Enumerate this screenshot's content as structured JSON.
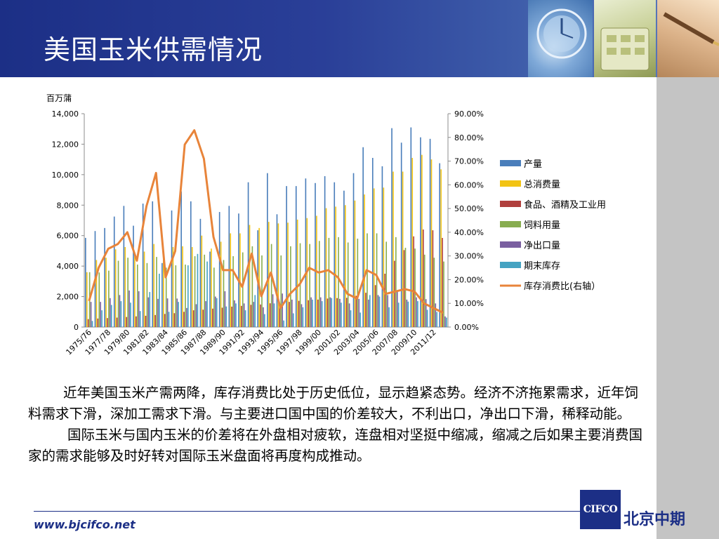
{
  "slide": {
    "title": "美国玉米供需情况",
    "paragraphs": [
      "近年美国玉米产需两降，库存消费比处于历史低位，显示趋紧态势。经济不济拖累需求，近年饲料需求下滑，深加工需求下滑。与主要进口国中国的价差较大，不利出口，净出口下滑，稀释动能。",
      "国际玉米与国内玉米的价差将在外盘相对疲软，连盘相对坚挺中缩减，缩减之后如果主要消费国家的需求能够及时好转对国际玉米盘面将再度构成推动。"
    ],
    "website": "www.bjcifco.net",
    "logo_text": "CIFCO",
    "company": "北京中期"
  },
  "chart_data": {
    "type": "bar",
    "unit_label": "百万蒲",
    "y_left_ticks": [
      "14,000",
      "12,000",
      "10,000",
      "8,000",
      "6,000",
      "4,000",
      "2,000",
      "0"
    ],
    "y_right_ticks": [
      "90.00%",
      "80.00%",
      "70.00%",
      "60.00%",
      "50.00%",
      "40.00%",
      "30.00%",
      "20.00%",
      "10.00%",
      "0.00%"
    ],
    "ylim_left": [
      0,
      14000
    ],
    "ylim_right": [
      0,
      90
    ],
    "x_tick_labels": [
      "1975/76",
      "1977/78",
      "1979/80",
      "1981/82",
      "1983/84",
      "1985/86",
      "1987/88",
      "1989/90",
      "1991/92",
      "1993/94",
      "1995/96",
      "1997/98",
      "1999/00",
      "2001/02",
      "2003/04",
      "2005/06",
      "2007/08",
      "2009/10",
      "2011/12"
    ],
    "categories": [
      "1975/76",
      "1976/77",
      "1977/78",
      "1978/79",
      "1979/80",
      "1980/81",
      "1981/82",
      "1982/83",
      "1983/84",
      "1984/85",
      "1985/86",
      "1986/87",
      "1987/88",
      "1988/89",
      "1989/90",
      "1990/91",
      "1991/92",
      "1992/93",
      "1993/94",
      "1994/95",
      "1995/96",
      "1996/97",
      "1997/98",
      "1998/99",
      "1999/00",
      "2000/01",
      "2001/02",
      "2002/03",
      "2003/04",
      "2004/05",
      "2005/06",
      "2006/07",
      "2007/08",
      "2008/09",
      "2009/10",
      "2010/11",
      "2011/12",
      "2012/13"
    ],
    "series": [
      {
        "name": "产量",
        "color": "#4a7ebb",
        "values": [
          5850,
          6300,
          6500,
          7250,
          7950,
          6650,
          8100,
          8250,
          4200,
          7650,
          8900,
          8250,
          7100,
          4950,
          7550,
          7950,
          7450,
          9500,
          6350,
          10100,
          7400,
          9250,
          9250,
          9750,
          9450,
          9900,
          9500,
          8950,
          10100,
          11800,
          11100,
          10550,
          13050,
          12100,
          13100,
          12450,
          12350,
          10750
        ]
      },
      {
        "name": "总消费量",
        "color": "#f2c313",
        "values": [
          3600,
          4400,
          4550,
          5100,
          5250,
          4850,
          4950,
          5450,
          4550,
          5250,
          5300,
          5250,
          6000,
          5150,
          5600,
          6150,
          6150,
          6700,
          6500,
          6900,
          6800,
          6850,
          7050,
          7150,
          7300,
          7800,
          7900,
          8000,
          8300,
          8700,
          9100,
          9150,
          10200,
          10200,
          11100,
          11300,
          11000,
          10350
        ]
      },
      {
        "name": "食品、酒精及工业用",
        "color": "#b0403d",
        "values": [
          520,
          560,
          590,
          620,
          660,
          700,
          740,
          790,
          860,
          910,
          1000,
          1100,
          1140,
          1210,
          1270,
          1340,
          1390,
          1460,
          1480,
          1560,
          1510,
          1650,
          1720,
          1760,
          1800,
          1870,
          1900,
          1920,
          2050,
          2250,
          2750,
          3500,
          4350,
          5050,
          5950,
          6400,
          6350,
          5850
        ]
      },
      {
        "name": "饲料用量",
        "color": "#88ad50",
        "values": [
          3600,
          3580,
          3700,
          4350,
          4550,
          4100,
          4200,
          4600,
          3900,
          4050,
          4100,
          4650,
          4750,
          3900,
          4400,
          4650,
          4900,
          5300,
          4700,
          5450,
          4700,
          5300,
          5500,
          5450,
          5650,
          5850,
          5900,
          5550,
          5800,
          6150,
          6150,
          5600,
          5900,
          5200,
          5150,
          4750,
          4550,
          4300
        ]
      },
      {
        "name": "净出口量",
        "color": "#7a5fa0",
        "values": [
          1650,
          1650,
          1900,
          2100,
          2400,
          2350,
          1950,
          1850,
          1880,
          1870,
          1250,
          1500,
          1700,
          2000,
          2350,
          1750,
          1550,
          1650,
          1300,
          2150,
          2200,
          1800,
          1500,
          1950,
          1950,
          1950,
          1850,
          1550,
          1850,
          1800,
          2100,
          2100,
          2400,
          1800,
          1950,
          1830,
          1550,
          700
        ]
      },
      {
        "name": "期末库存",
        "color": "#45a3c2",
        "values": [
          400,
          1100,
          1450,
          1700,
          1600,
          1050,
          2300,
          3500,
          1000,
          1650,
          4050,
          4800,
          4300,
          1900,
          1350,
          1550,
          1100,
          2100,
          850,
          1550,
          430,
          900,
          1300,
          1800,
          1700,
          1900,
          1600,
          1100,
          950,
          2100,
          2000,
          1300,
          1600,
          1670,
          1700,
          1130,
          990,
          620
        ]
      }
    ],
    "line_series": {
      "name": "库存消费比(右轴）",
      "color": "#e8843a",
      "axis": "right",
      "values": [
        11,
        25,
        33,
        35,
        40,
        28,
        51,
        65,
        21,
        32,
        77,
        83,
        71,
        38,
        24,
        24,
        17,
        31,
        13,
        23,
        8,
        14,
        18,
        25,
        23,
        24,
        21,
        14,
        12,
        24,
        22,
        14,
        15,
        16,
        15,
        10,
        8,
        6
      ]
    },
    "legend_position": "right",
    "grid": false
  }
}
